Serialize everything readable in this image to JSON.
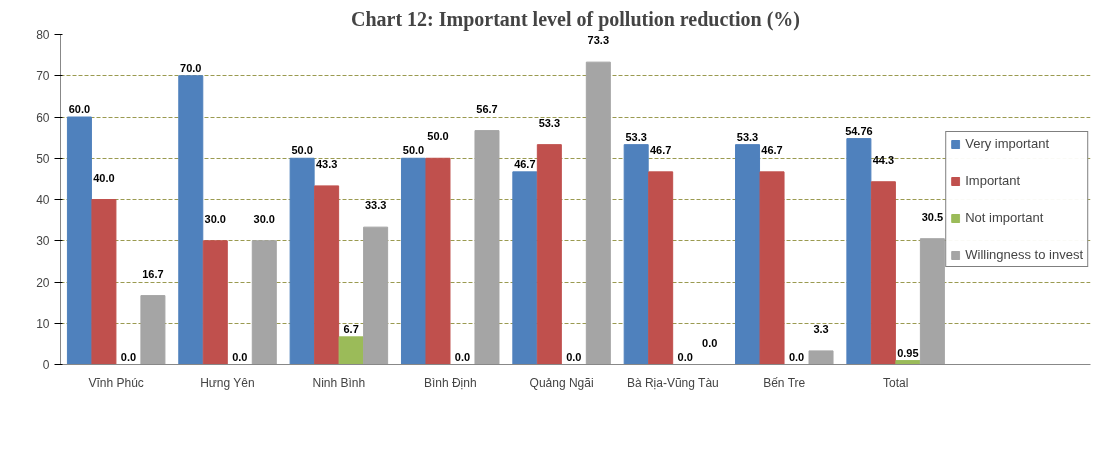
{
  "chart_data": {
    "type": "bar",
    "title": "Chart 12: Important level of pollution reduction (%)",
    "categories": [
      "Vĩnh Phúc",
      "Hưng Yên",
      "Ninh Bình",
      "Bình Định",
      "Quảng Ngãi",
      "Bà Rịa-Vũng Tàu",
      "Bến Tre",
      "Total"
    ],
    "series": [
      {
        "name": "Very important",
        "color": "#4f81bd",
        "values": [
          60.0,
          70.0,
          50.0,
          50.0,
          46.7,
          53.3,
          53.3,
          54.76
        ],
        "value_labels": [
          "60.0",
          "70.0",
          "50.0",
          "50.0",
          "46.7",
          "53.3",
          "53.3",
          "54.76"
        ]
      },
      {
        "name": "Important",
        "color": "#c0504d",
        "values": [
          40.0,
          30.0,
          43.3,
          50.0,
          53.3,
          46.7,
          46.7,
          44.3
        ],
        "value_labels": [
          "40.0",
          "30.0",
          "43.3",
          "50.0",
          "53.3",
          "46.7",
          "46.7",
          "44.3"
        ]
      },
      {
        "name": "Not important",
        "color": "#9bbb59",
        "values": [
          0.0,
          0.0,
          6.7,
          0.0,
          0.0,
          0.0,
          0.0,
          0.95
        ],
        "value_labels": [
          "0.0",
          "0.0",
          "6.7",
          "0.0",
          "0.0",
          "0.0",
          "0.0",
          "0.95"
        ]
      },
      {
        "name": "Willingness to invest",
        "color": "#a5a5a5",
        "values": [
          16.7,
          30.0,
          33.3,
          56.7,
          73.3,
          0.0,
          3.3,
          30.5
        ],
        "value_labels": [
          "16.7",
          "30.0",
          "33.3",
          "56.7",
          "73.3",
          "0.0",
          "3.3",
          "30.5"
        ]
      }
    ],
    "ylim": [
      0,
      80
    ],
    "yticks": [
      0,
      10,
      20,
      30,
      40,
      50,
      60,
      70,
      80
    ],
    "grid": "y",
    "legend": "right"
  }
}
